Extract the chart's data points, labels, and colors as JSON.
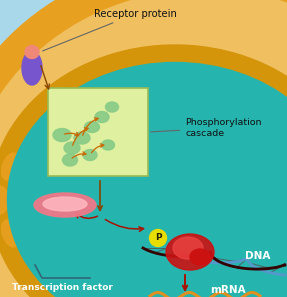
{
  "figsize": [
    2.87,
    2.97
  ],
  "dpi": 100,
  "bg_sky": "#a8d8ea",
  "bg_cytoplasm_orange": "#e8a020",
  "bg_cytoplasm_light": "#f0c060",
  "bg_nucleus": "#25b5ae",
  "bg_nuc_membrane": "#d4950a",
  "bg_phospho_box": "#dff0a0",
  "receptor_body_color": "#7755cc",
  "receptor_top_color": "#f08878",
  "tf_color": "#f07888",
  "tf_highlight": "#ffb8c0",
  "mol_color": "#88cc88",
  "mol_shadow": "#70aa70",
  "dna_blue": "#5599cc",
  "dna_red": "#cc2222",
  "protein_red": "#cc1111",
  "protein_highlight": "#ee4444",
  "p_yellow": "#e8dd00",
  "mrna_orange": "#e09020",
  "arrow_dark": "#884400",
  "arrow_red": "#aa1100",
  "receptor_protein_label": "Receptor protein",
  "phospho_label_1": "Phosphorylation",
  "phospho_label_2": "cascade",
  "transcription_label": "Transcription factor",
  "dna_label": "DNA",
  "mrna_label": "mRNA",
  "p_label": "P",
  "line_color": "#336677"
}
